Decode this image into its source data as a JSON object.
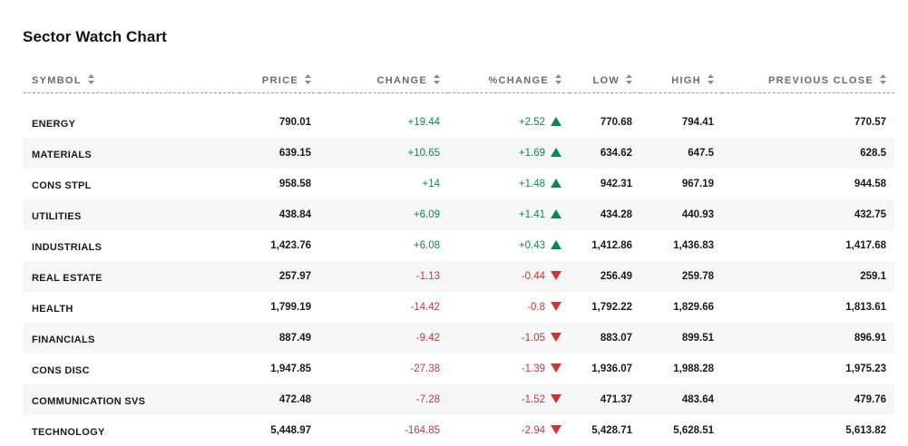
{
  "title": "Sector Watch Chart",
  "colors": {
    "positive": "#0a8a4a",
    "negative": "#d03333",
    "header_text": "#6b6b6b",
    "alt_row_bg": "#f6f6f6"
  },
  "columns": {
    "symbol": "SYMBOL",
    "price": "PRICE",
    "change": "CHANGE",
    "pct_change": "%CHANGE",
    "low": "LOW",
    "high": "HIGH",
    "previous_close": "PREVIOUS CLOSE"
  },
  "icons": {
    "sort": "sort-arrows-icon",
    "up": "triangle-up-icon",
    "down": "triangle-down-icon"
  },
  "rows": [
    {
      "symbol": "ENERGY",
      "price": "790.01",
      "change": "+19.44",
      "pct_change": "+2.52",
      "direction": "up",
      "low": "770.68",
      "high": "794.41",
      "previous_close": "770.57"
    },
    {
      "symbol": "MATERIALS",
      "price": "639.15",
      "change": "+10.65",
      "pct_change": "+1.69",
      "direction": "up",
      "low": "634.62",
      "high": "647.5",
      "previous_close": "628.5"
    },
    {
      "symbol": "CONS STPL",
      "price": "958.58",
      "change": "+14",
      "pct_change": "+1.48",
      "direction": "up",
      "low": "942.31",
      "high": "967.19",
      "previous_close": "944.58"
    },
    {
      "symbol": "UTILITIES",
      "price": "438.84",
      "change": "+6.09",
      "pct_change": "+1.41",
      "direction": "up",
      "low": "434.28",
      "high": "440.93",
      "previous_close": "432.75"
    },
    {
      "symbol": "INDUSTRIALS",
      "price": "1,423.76",
      "change": "+6.08",
      "pct_change": "+0.43",
      "direction": "up",
      "low": "1,412.86",
      "high": "1,436.83",
      "previous_close": "1,417.68"
    },
    {
      "symbol": "REAL ESTATE",
      "price": "257.97",
      "change": "-1.13",
      "pct_change": "-0.44",
      "direction": "down",
      "low": "256.49",
      "high": "259.78",
      "previous_close": "259.1"
    },
    {
      "symbol": "HEALTH",
      "price": "1,799.19",
      "change": "-14.42",
      "pct_change": "-0.8",
      "direction": "down",
      "low": "1,792.22",
      "high": "1,829.66",
      "previous_close": "1,813.61"
    },
    {
      "symbol": "FINANCIALS",
      "price": "887.49",
      "change": "-9.42",
      "pct_change": "-1.05",
      "direction": "down",
      "low": "883.07",
      "high": "899.51",
      "previous_close": "896.91"
    },
    {
      "symbol": "CONS DISC",
      "price": "1,947.85",
      "change": "-27.38",
      "pct_change": "-1.39",
      "direction": "down",
      "low": "1,936.07",
      "high": "1,988.28",
      "previous_close": "1,975.23"
    },
    {
      "symbol": "COMMUNICATION SVS",
      "price": "472.48",
      "change": "-7.28",
      "pct_change": "-1.52",
      "direction": "down",
      "low": "471.37",
      "high": "483.64",
      "previous_close": "479.76"
    },
    {
      "symbol": "TECHNOLOGY",
      "price": "5,448.97",
      "change": "-164.85",
      "pct_change": "-2.94",
      "direction": "down",
      "low": "5,428.71",
      "high": "5,628.51",
      "previous_close": "5,613.82"
    }
  ]
}
